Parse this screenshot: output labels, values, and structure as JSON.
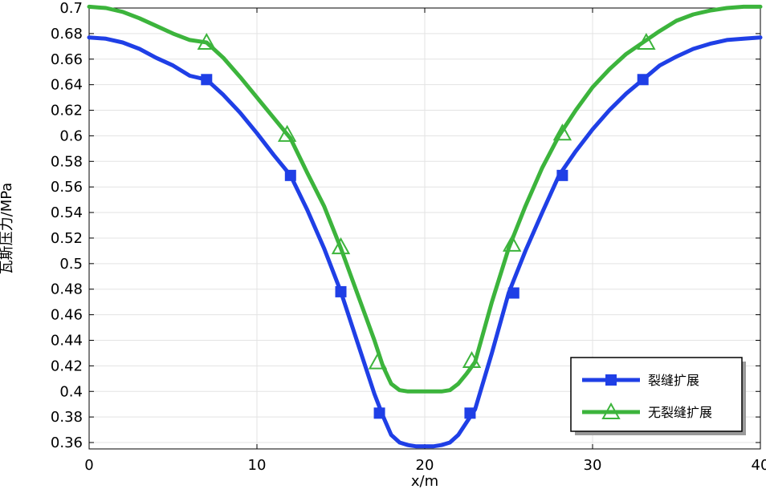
{
  "chart_data": {
    "type": "line",
    "xlabel": "x/m",
    "ylabel": "瓦斯压力/MPa",
    "xlim": [
      0,
      40
    ],
    "ylim": [
      0.355,
      0.7
    ],
    "xticks": [
      0,
      10,
      20,
      30,
      40
    ],
    "xtick_labels": [
      "0",
      "10",
      "20",
      "30",
      "40"
    ],
    "yticks": [
      0.36,
      0.38,
      0.4,
      0.42,
      0.44,
      0.46,
      0.48,
      0.5,
      0.52,
      0.54,
      0.56,
      0.58,
      0.6,
      0.62,
      0.64,
      0.66,
      0.68,
      0.7
    ],
    "ytick_labels": [
      "0.36",
      "0.38",
      "0.4",
      "0.42",
      "0.44",
      "0.46",
      "0.48",
      "0.5",
      "0.52",
      "0.54",
      "0.56",
      "0.58",
      "0.6",
      "0.62",
      "0.64",
      "0.66",
      "0.68",
      "0.7"
    ],
    "grid": true,
    "legend_position": "bottom-right",
    "series": [
      {
        "name": "裂缝扩展",
        "color": "#1f3fe6",
        "marker": "square",
        "x": [
          0,
          1,
          2,
          3,
          4,
          5,
          6,
          7,
          8,
          9,
          10,
          11,
          12,
          13,
          14,
          15,
          16,
          17,
          17.5,
          18,
          18.5,
          19,
          19.5,
          20,
          20.5,
          21,
          21.5,
          22,
          22.5,
          23,
          24,
          25,
          26,
          27,
          28,
          29,
          30,
          31,
          32,
          33,
          34,
          35,
          36,
          37,
          38,
          39,
          40
        ],
        "y": [
          0.677,
          0.676,
          0.673,
          0.668,
          0.661,
          0.655,
          0.647,
          0.644,
          0.632,
          0.618,
          0.602,
          0.585,
          0.569,
          0.542,
          0.512,
          0.478,
          0.438,
          0.398,
          0.381,
          0.366,
          0.36,
          0.358,
          0.357,
          0.357,
          0.357,
          0.358,
          0.36,
          0.366,
          0.376,
          0.386,
          0.43,
          0.477,
          0.51,
          0.54,
          0.569,
          0.588,
          0.605,
          0.62,
          0.633,
          0.644,
          0.655,
          0.662,
          0.668,
          0.672,
          0.675,
          0.676,
          0.677
        ],
        "marker_x": [
          7,
          12,
          15,
          17.3,
          22.7,
          25.3,
          28.2,
          33
        ],
        "marker_y": [
          0.644,
          0.569,
          0.478,
          0.383,
          0.383,
          0.477,
          0.569,
          0.644
        ]
      },
      {
        "name": "无裂缝扩展",
        "color": "#3cb43c",
        "marker": "triangle",
        "x": [
          0,
          1,
          2,
          3,
          4,
          5,
          6,
          7,
          8,
          9,
          10,
          11,
          12,
          13,
          14,
          15,
          16,
          17,
          17.5,
          18,
          18.5,
          19,
          19.5,
          20,
          20.5,
          21,
          21.5,
          22,
          22.5,
          23,
          24,
          25,
          26,
          27,
          28,
          29,
          30,
          31,
          32,
          33,
          34,
          35,
          36,
          37,
          38,
          39,
          40
        ],
        "y": [
          0.701,
          0.7,
          0.697,
          0.692,
          0.686,
          0.68,
          0.675,
          0.673,
          0.661,
          0.646,
          0.63,
          0.614,
          0.598,
          0.571,
          0.545,
          0.512,
          0.476,
          0.44,
          0.42,
          0.406,
          0.401,
          0.4,
          0.4,
          0.4,
          0.4,
          0.4,
          0.401,
          0.406,
          0.414,
          0.423,
          0.47,
          0.512,
          0.545,
          0.575,
          0.6,
          0.62,
          0.638,
          0.652,
          0.664,
          0.673,
          0.682,
          0.69,
          0.695,
          0.698,
          0.7,
          0.701,
          0.701
        ],
        "marker_x": [
          7,
          11.8,
          15,
          17.2,
          22.8,
          25.2,
          28.2,
          33.2
        ],
        "marker_y": [
          0.673,
          0.601,
          0.513,
          0.423,
          0.424,
          0.515,
          0.602,
          0.673
        ]
      }
    ]
  }
}
